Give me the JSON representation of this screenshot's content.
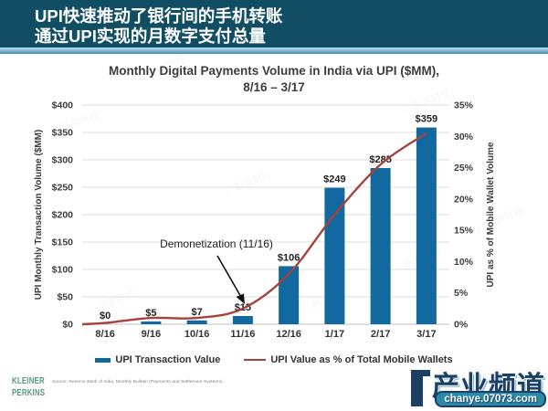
{
  "banner": {
    "line1": "UPI快速推动了银行间的手机转账",
    "line2": "通过UPI实现的月数字支付总量"
  },
  "chart_data": {
    "type": "bar",
    "title_line1": "Monthly Digital Payments Volume in India via UPI ($MM),",
    "title_line2": "8/16 – 3/17",
    "categories": [
      "8/16",
      "9/16",
      "10/16",
      "11/16",
      "12/16",
      "1/17",
      "2/17",
      "3/17"
    ],
    "series": [
      {
        "name": "UPI Transaction Value",
        "type": "bar",
        "values": [
          0,
          5,
          7,
          15,
          106,
          249,
          285,
          359
        ],
        "labels": [
          "$0",
          "$5",
          "$7",
          "$15",
          "$106",
          "$249",
          "$285",
          "$359"
        ],
        "color": "#1169a0"
      },
      {
        "name": "UPI Value as % of Total Mobile Wallets",
        "type": "line",
        "values": [
          0.2,
          1,
          1,
          2.5,
          8,
          17.5,
          25.5,
          30.5
        ],
        "color": "#a6413c"
      }
    ],
    "left_axis": {
      "label": "UPI Monthly Transaction Volume ($MM)",
      "min": 0,
      "max": 400,
      "step": 50,
      "tick_prefix": "$"
    },
    "right_axis": {
      "label": "UPI as % of Mobile Wallet Volume",
      "min": 0,
      "max": 35,
      "step": 5,
      "tick_suffix": "%"
    },
    "annotation": {
      "text": "Demonetization (11/16)"
    },
    "grid": true,
    "legend_position": "bottom"
  },
  "legend": {
    "item1": "UPI Transaction Value",
    "item2": "UPI Value as % of Total Mobile Wallets"
  },
  "footer": {
    "logo_line1": "KLEINER",
    "logo_line2": "PERKINS",
    "source": "Source: Reserve Bank of India, Monthly Bulletin (Payments and Settlement Systems)"
  },
  "watermark": {
    "brand": "产业频道",
    "url": "chanye.07073.com",
    "faint_text": "新浪财经"
  }
}
